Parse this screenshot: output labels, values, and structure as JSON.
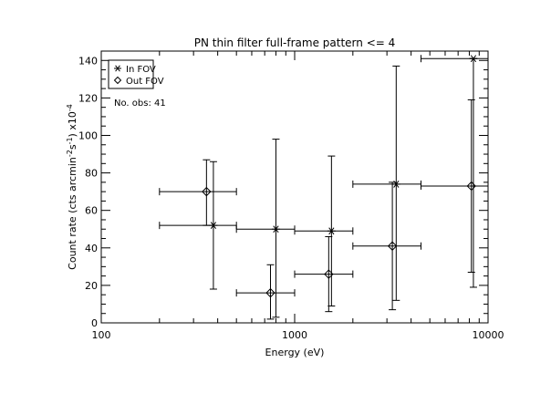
{
  "chart_data": {
    "type": "scatter",
    "title": "PN thin filter full-frame pattern <= 4",
    "xlabel": "Energy (eV)",
    "ylabel": "Count rate (cts arcmin",
    "ylabel_parts": {
      "a": "Count rate (cts arcmin",
      "sup1": "-2",
      "b": "s",
      "sup2": "-1",
      "c": ") x10",
      "sup3": "-4"
    },
    "xscale": "log",
    "xlim": [
      100,
      10000
    ],
    "ylim": [
      0,
      145
    ],
    "xticks": [
      100,
      1000,
      10000
    ],
    "xtick_labels": [
      "100",
      "1000",
      "10000"
    ],
    "yticks": [
      0,
      20,
      40,
      60,
      80,
      100,
      120,
      140
    ],
    "ytick_labels": [
      "0",
      "20",
      "40",
      "60",
      "80",
      "100",
      "120",
      "140"
    ],
    "legend": {
      "placement": "top-left",
      "entries": [
        {
          "marker": "asterisk",
          "label": "In FOV"
        },
        {
          "marker": "diamond",
          "label": "Out FOV"
        }
      ]
    },
    "annotation": "No. obs: 41",
    "series": [
      {
        "name": "In FOV",
        "marker": "asterisk",
        "points": [
          {
            "x": 380,
            "y": 52,
            "xlo": 200,
            "xhi": 500,
            "ylo": 18,
            "yhi": 86
          },
          {
            "x": 800,
            "y": 50,
            "xlo": 500,
            "xhi": 1000,
            "ylo": 3,
            "yhi": 98
          },
          {
            "x": 1550,
            "y": 49,
            "xlo": 1000,
            "xhi": 2000,
            "ylo": 9,
            "yhi": 89
          },
          {
            "x": 3350,
            "y": 74,
            "xlo": 2000,
            "xhi": 4500,
            "ylo": 12,
            "yhi": 137
          },
          {
            "x": 8400,
            "y": 141,
            "xlo": 4500,
            "xhi": 10000,
            "ylo": 19,
            "yhi": 141
          }
        ]
      },
      {
        "name": "Out FOV",
        "marker": "diamond",
        "points": [
          {
            "x": 350,
            "y": 70,
            "xlo": 200,
            "xhi": 500,
            "ylo": 52,
            "yhi": 87
          },
          {
            "x": 750,
            "y": 16,
            "xlo": 500,
            "xhi": 1000,
            "ylo": 2,
            "yhi": 31
          },
          {
            "x": 1500,
            "y": 26,
            "xlo": 1000,
            "xhi": 2000,
            "ylo": 6,
            "yhi": 46
          },
          {
            "x": 3200,
            "y": 41,
            "xlo": 2000,
            "xhi": 4500,
            "ylo": 7,
            "yhi": 75
          },
          {
            "x": 8200,
            "y": 73,
            "xlo": 4500,
            "xhi": 10000,
            "ylo": 27,
            "yhi": 119
          }
        ]
      }
    ]
  }
}
